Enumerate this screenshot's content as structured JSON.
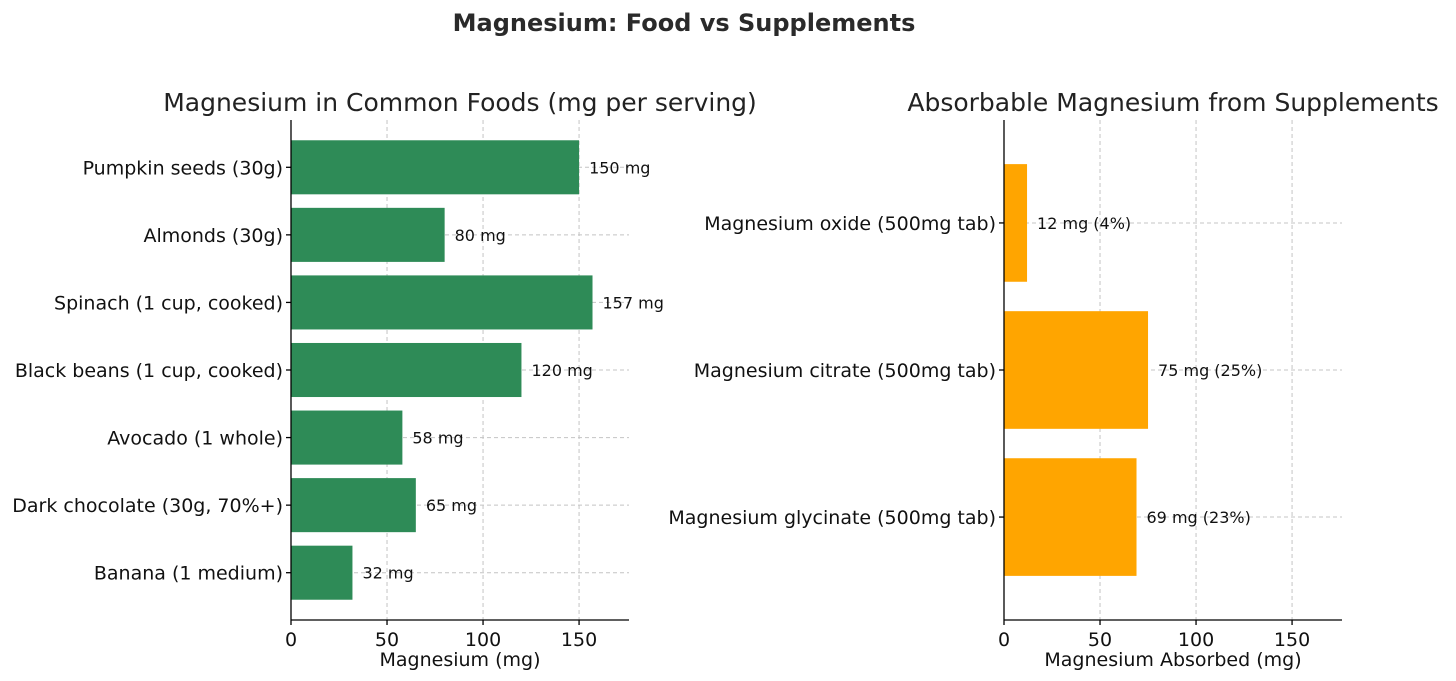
{
  "suptitle": "Magnesium: Food vs Supplements",
  "chart_data": [
    {
      "type": "bar",
      "orientation": "horizontal",
      "title": "Magnesium in Common Foods (mg per serving)",
      "xlabel": "Magnesium (mg)",
      "ylabel": "",
      "xlim": [
        0,
        176
      ],
      "xticks": [
        0,
        50,
        100,
        150
      ],
      "grid": true,
      "color": "#2e8b57",
      "categories": [
        "Pumpkin seeds (30g)",
        "Almonds (30g)",
        "Spinach (1 cup, cooked)",
        "Black beans (1 cup, cooked)",
        "Avocado (1 whole)",
        "Dark chocolate (30g, 70%+)",
        "Banana (1 medium)"
      ],
      "values": [
        150,
        80,
        157,
        120,
        58,
        65,
        32
      ],
      "data_labels": [
        "150 mg",
        "80 mg",
        "157 mg",
        "120 mg",
        "58 mg",
        "65 mg",
        "32 mg"
      ]
    },
    {
      "type": "bar",
      "orientation": "horizontal",
      "title": "Absorbable Magnesium from Supplements",
      "xlabel": "Magnesium Absorbed (mg)",
      "ylabel": "",
      "xlim": [
        0,
        176
      ],
      "xticks": [
        0,
        50,
        100,
        150
      ],
      "grid": true,
      "color": "#ffa500",
      "categories": [
        "Magnesium oxide (500mg tab)",
        "Magnesium citrate (500mg tab)",
        "Magnesium glycinate (500mg tab)"
      ],
      "values": [
        12,
        75,
        69
      ],
      "data_labels": [
        "12 mg (4%)",
        "75 mg (25%)",
        "69 mg (23%)"
      ]
    }
  ]
}
